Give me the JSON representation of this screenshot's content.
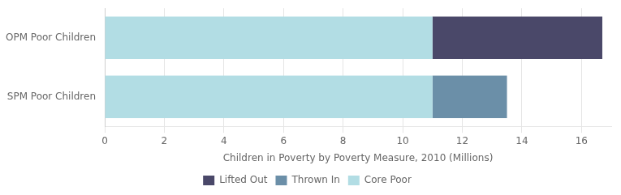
{
  "chart_data": {
    "type": "bar",
    "orientation": "horizontal",
    "stacked": true,
    "xlabel": "Children in Poverty by Poverty Measure, 2010 (Millions)",
    "categories": [
      "OPM Poor Children",
      "SPM Poor Children"
    ],
    "series": [
      {
        "name": "Lifted Out",
        "color": "#4a4869",
        "values": [
          5.7,
          0.0
        ]
      },
      {
        "name": "Thrown In",
        "color": "#6b8fa8",
        "values": [
          0.0,
          2.5
        ]
      },
      {
        "name": "Core Poor",
        "color": "#b2dde4",
        "values": [
          11.0,
          11.0
        ]
      }
    ],
    "xlim": [
      0,
      17
    ],
    "xticks": [
      0,
      2,
      4,
      6,
      8,
      10,
      12,
      14,
      16
    ],
    "grid": true,
    "legend": "bottom"
  }
}
